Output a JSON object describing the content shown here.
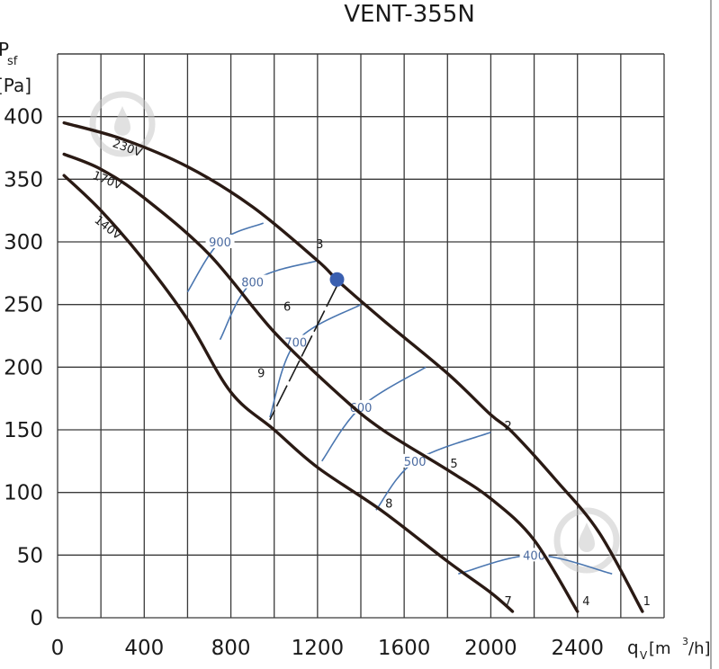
{
  "chart_data": {
    "type": "line",
    "title": "VENT-355N",
    "ylabel_top": "P",
    "ylabel_sub": "sf",
    "ylabel_unit": "[Pa]",
    "xlabel_main": "q",
    "xlabel_sub": "V",
    "xlabel_unit": "[m",
    "xlabel_sup": "3",
    "xlabel_end": "/h]",
    "xlim": [
      0,
      2800
    ],
    "ylim": [
      0,
      450
    ],
    "grid": true,
    "x_ticks": [
      0,
      400,
      800,
      1200,
      1600,
      2000,
      2400
    ],
    "x_tick_labels": [
      "0",
      "400",
      "800",
      "1200",
      "1600",
      "2000",
      "2400"
    ],
    "y_ticks": [
      0,
      50,
      100,
      150,
      200,
      250,
      300,
      350,
      400
    ],
    "y_tick_labels": [
      "0",
      "50",
      "100",
      "150",
      "200",
      "250",
      "300",
      "350",
      "400"
    ],
    "series": [
      {
        "name": "230V",
        "x": [
          30,
          300,
          600,
          900,
          1200,
          1300,
          1500,
          1800,
          2000,
          2100,
          2300,
          2500,
          2700
        ],
        "y": [
          395,
          382,
          360,
          328,
          285,
          268,
          238,
          195,
          162,
          148,
          110,
          68,
          5
        ]
      },
      {
        "name": "170V",
        "x": [
          30,
          200,
          400,
          700,
          1000,
          1300,
          1500,
          1800,
          2000,
          2200,
          2400
        ],
        "y": [
          370,
          358,
          335,
          290,
          228,
          178,
          150,
          118,
          95,
          62,
          5
        ]
      },
      {
        "name": "140V",
        "x": [
          30,
          200,
          400,
          600,
          800,
          1000,
          1200,
          1500,
          1800,
          2000,
          2100
        ],
        "y": [
          353,
          325,
          285,
          238,
          180,
          150,
          120,
          85,
          45,
          20,
          5
        ]
      }
    ],
    "rpm_curves": [
      {
        "label": "900",
        "x": [
          600,
          750,
          950
        ],
        "y": [
          260,
          300,
          315
        ]
      },
      {
        "label": "800",
        "x": [
          750,
          900,
          1200
        ],
        "y": [
          222,
          268,
          285
        ]
      },
      {
        "label": "700",
        "x": [
          980,
          1100,
          1400
        ],
        "y": [
          160,
          220,
          250
        ]
      },
      {
        "label": "600",
        "x": [
          1220,
          1400,
          1700
        ],
        "y": [
          125,
          168,
          200
        ]
      },
      {
        "label": "500",
        "x": [
          1470,
          1650,
          2000
        ],
        "y": [
          86,
          125,
          148
        ]
      },
      {
        "label": "400",
        "x": [
          1850,
          2200,
          2560
        ],
        "y": [
          35,
          50,
          35
        ]
      }
    ],
    "operating_points": [
      {
        "label": "1",
        "x": 2720,
        "y": 10
      },
      {
        "label": "2",
        "x": 2080,
        "y": 150
      },
      {
        "label": "3",
        "x": 1210,
        "y": 295
      },
      {
        "label": "4",
        "x": 2440,
        "y": 10
      },
      {
        "label": "5",
        "x": 1830,
        "y": 120
      },
      {
        "label": "6",
        "x": 1060,
        "y": 245
      },
      {
        "label": "7",
        "x": 2080,
        "y": 10
      },
      {
        "label": "8",
        "x": 1530,
        "y": 88
      },
      {
        "label": "9",
        "x": 940,
        "y": 192
      }
    ],
    "marked_point": {
      "x": 1290,
      "y": 270
    }
  }
}
